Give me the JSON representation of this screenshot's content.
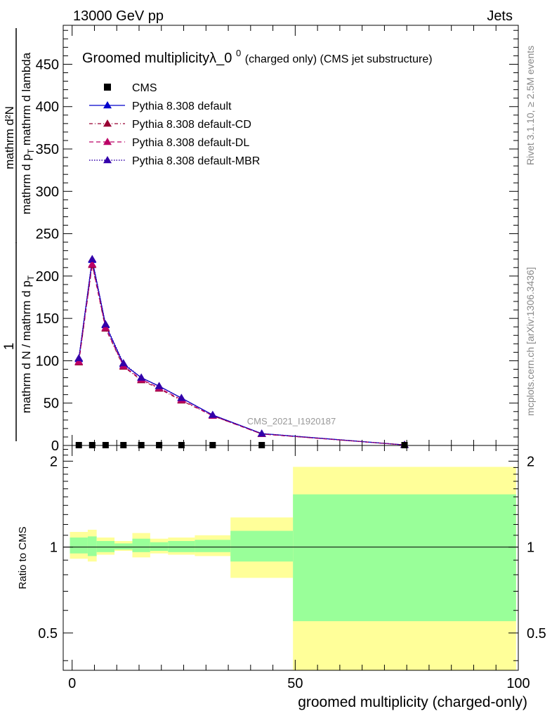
{
  "header": {
    "left": "13000 GeV pp",
    "right": "Jets"
  },
  "side_labels": {
    "rivet": "Rivet 3.1.10, ≥ 2.5M events",
    "mcplots": "mcplots.cern.ch [arXiv:1306.3436]"
  },
  "colors": {
    "data": "#000000",
    "default": "#0000cc",
    "default_cd": "#990033",
    "default_dl": "#bb0066",
    "default_mbr": "#3300aa",
    "band_inner": "#99ff99",
    "band_outer": "#ffff99"
  },
  "chart_data": [
    {
      "type": "line",
      "title": "Groomed multiplicityλ_0",
      "title_sup": "0",
      "title_suffix": " (charged only) (CMS jet substructure)",
      "ylabel_numerator": "mathrm d²N",
      "ylabel_denominator": "mathrm d p",
      "ylabel_denominator_sub": "T",
      "ylabel_denominator_suffix": " mathrm d lambda",
      "ylabel_prefactor_num": "1",
      "ylabel_prefactor_den": "mathrm d N / mathrm d p",
      "ylabel_prefactor_den_sub": "T",
      "watermark": "CMS_2021_I1920187",
      "xlim": [
        -2,
        100
      ],
      "ylim": [
        0,
        496
      ],
      "yticks": [
        0,
        50,
        100,
        150,
        200,
        250,
        300,
        350,
        400,
        450
      ],
      "data": {
        "name": "CMS",
        "x": [
          1.5,
          4.5,
          7.5,
          11.5,
          15.5,
          19.5,
          24.5,
          31.5,
          42.5,
          74.5
        ],
        "y": [
          0.4,
          0.4,
          0.4,
          0.4,
          0.4,
          0.4,
          0.4,
          0.4,
          0.4,
          0.4
        ]
      },
      "series": [
        {
          "name": "Pythia 8.308 default",
          "key": "default",
          "x": [
            1.5,
            4.5,
            7.5,
            11.5,
            15.5,
            19.5,
            24.5,
            31.5,
            42.5,
            74.5
          ],
          "y": [
            102,
            219,
            142,
            96,
            80,
            70,
            56,
            36,
            14,
            0.6
          ]
        },
        {
          "name": "Pythia 8.308 default-CD",
          "key": "default_cd",
          "x": [
            1.5,
            4.5,
            7.5,
            11.5,
            15.5,
            19.5,
            24.5,
            31.5,
            42.5,
            74.5
          ],
          "y": [
            98,
            213,
            138,
            93,
            77,
            67,
            53,
            35,
            13.5,
            0.6
          ]
        },
        {
          "name": "Pythia 8.308 default-DL",
          "key": "default_dl",
          "x": [
            1.5,
            4.5,
            7.5,
            11.5,
            15.5,
            19.5,
            24.5,
            31.5,
            42.5,
            74.5
          ],
          "y": [
            99,
            214,
            139,
            94,
            78,
            68,
            54,
            35,
            13.5,
            0.6
          ]
        },
        {
          "name": "Pythia 8.308 default-MBR",
          "key": "default_mbr",
          "x": [
            1.5,
            4.5,
            7.5,
            11.5,
            15.5,
            19.5,
            24.5,
            31.5,
            42.5,
            74.5
          ],
          "y": [
            103,
            220,
            143,
            97,
            80,
            70,
            56,
            36,
            14,
            0.6
          ]
        }
      ]
    },
    {
      "type": "area",
      "ylabel": "Ratio to CMS",
      "xlabel": "groomed multiplicity (charged-only)",
      "xlim": [
        -2,
        100
      ],
      "ylim": [
        0.37,
        2.27
      ],
      "xticks": [
        0,
        50,
        100
      ],
      "yticks": [
        0.5,
        1,
        2
      ],
      "reference": 1,
      "bins": [
        {
          "x0": -0.5,
          "x1": 3.5,
          "inner": [
            0.95,
            1.08
          ],
          "outer": [
            0.91,
            1.13
          ]
        },
        {
          "x0": 3.5,
          "x1": 5.5,
          "inner": [
            0.93,
            1.09
          ],
          "outer": [
            0.89,
            1.15
          ]
        },
        {
          "x0": 5.5,
          "x1": 9.5,
          "inner": [
            0.96,
            1.05
          ],
          "outer": [
            0.94,
            1.08
          ]
        },
        {
          "x0": 9.5,
          "x1": 13.5,
          "inner": [
            0.98,
            1.03
          ],
          "outer": [
            0.97,
            1.05
          ]
        },
        {
          "x0": 13.5,
          "x1": 17.5,
          "inner": [
            0.96,
            1.07
          ],
          "outer": [
            0.92,
            1.12
          ]
        },
        {
          "x0": 17.5,
          "x1": 21.5,
          "inner": [
            0.97,
            1.04
          ],
          "outer": [
            0.95,
            1.07
          ]
        },
        {
          "x0": 21.5,
          "x1": 27.5,
          "inner": [
            0.96,
            1.05
          ],
          "outer": [
            0.94,
            1.08
          ]
        },
        {
          "x0": 27.5,
          "x1": 35.5,
          "inner": [
            0.96,
            1.06
          ],
          "outer": [
            0.93,
            1.1
          ]
        },
        {
          "x0": 35.5,
          "x1": 49.5,
          "inner": [
            0.89,
            1.14
          ],
          "outer": [
            0.78,
            1.27
          ]
        },
        {
          "x0": 49.5,
          "x1": 99.5,
          "inner": [
            0.55,
            1.53
          ],
          "outer": [
            0.37,
            1.91
          ]
        }
      ]
    }
  ]
}
